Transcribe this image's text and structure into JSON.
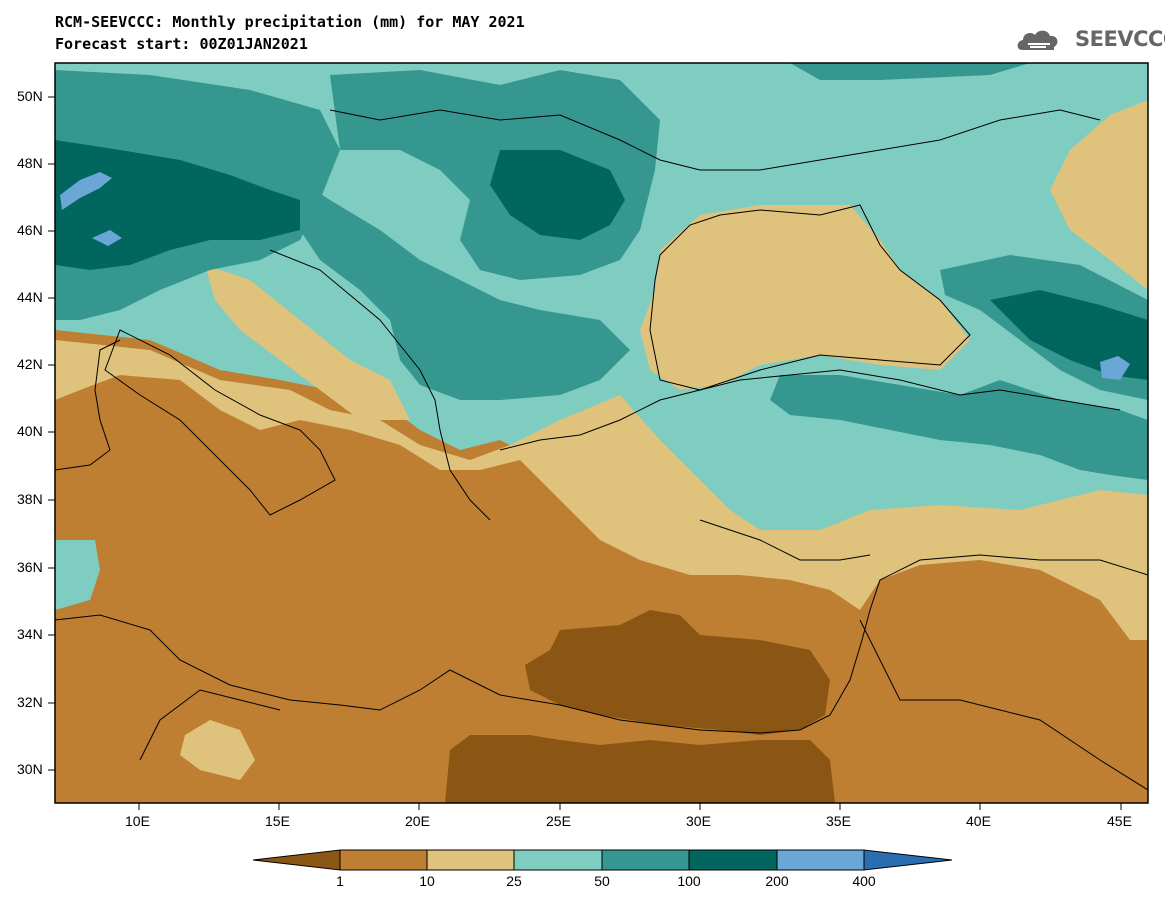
{
  "header": {
    "title": "RCM-SEEVCCC: Monthly precipitation (mm) for MAY 2021",
    "subtitle": "Forecast start: 00Z01JAN2021",
    "logo_text": "SEEVCCC"
  },
  "map": {
    "lon_range": [
      7,
      46
    ],
    "lat_range": [
      29,
      51
    ],
    "lat_ticks": [
      "50N",
      "48N",
      "46N",
      "44N",
      "42N",
      "40N",
      "38N",
      "36N",
      "34N",
      "32N",
      "30N"
    ],
    "lon_ticks": [
      "10E",
      "15E",
      "20E",
      "25E",
      "30E",
      "35E",
      "40E",
      "45E"
    ]
  },
  "legend": {
    "levels": [
      "1",
      "10",
      "25",
      "50",
      "100",
      "200",
      "400"
    ],
    "colors": {
      "lt1": "#8b5513",
      "c1_10": "#bf7f33",
      "c10_25": "#dfc27c",
      "c25_50": "#7fcdc0",
      "c50_100": "#369790",
      "c100_200": "#01665e",
      "c200_400": "#6aa6d6",
      "gt400": "#2a6db0"
    }
  }
}
